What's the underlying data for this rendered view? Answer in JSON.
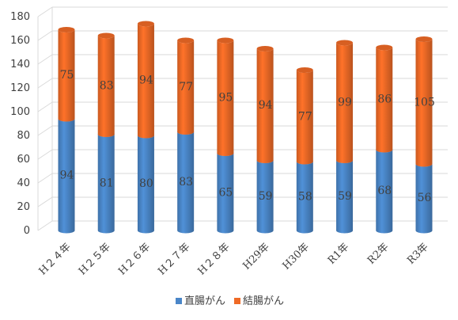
{
  "chart_data": {
    "type": "bar",
    "stacked": true,
    "categories": [
      "H２４年",
      "H２５年",
      "H２６年",
      "H２７年",
      "H２８年",
      "H29年",
      "H30年",
      "R1年",
      "R2年",
      "R3年"
    ],
    "series": [
      {
        "name": "直腸がん",
        "color": "#4a86c8",
        "values": [
          94,
          81,
          80,
          83,
          65,
          59,
          58,
          59,
          68,
          56
        ]
      },
      {
        "name": "結腸がん",
        "color": "#ef6a26",
        "values": [
          75,
          83,
          94,
          77,
          95,
          94,
          77,
          99,
          86,
          105
        ]
      }
    ],
    "yticks": [
      0,
      20,
      40,
      60,
      80,
      100,
      120,
      140,
      160,
      180
    ],
    "ylim": [
      0,
      180
    ],
    "grid": true,
    "legend_position": "bottom"
  }
}
